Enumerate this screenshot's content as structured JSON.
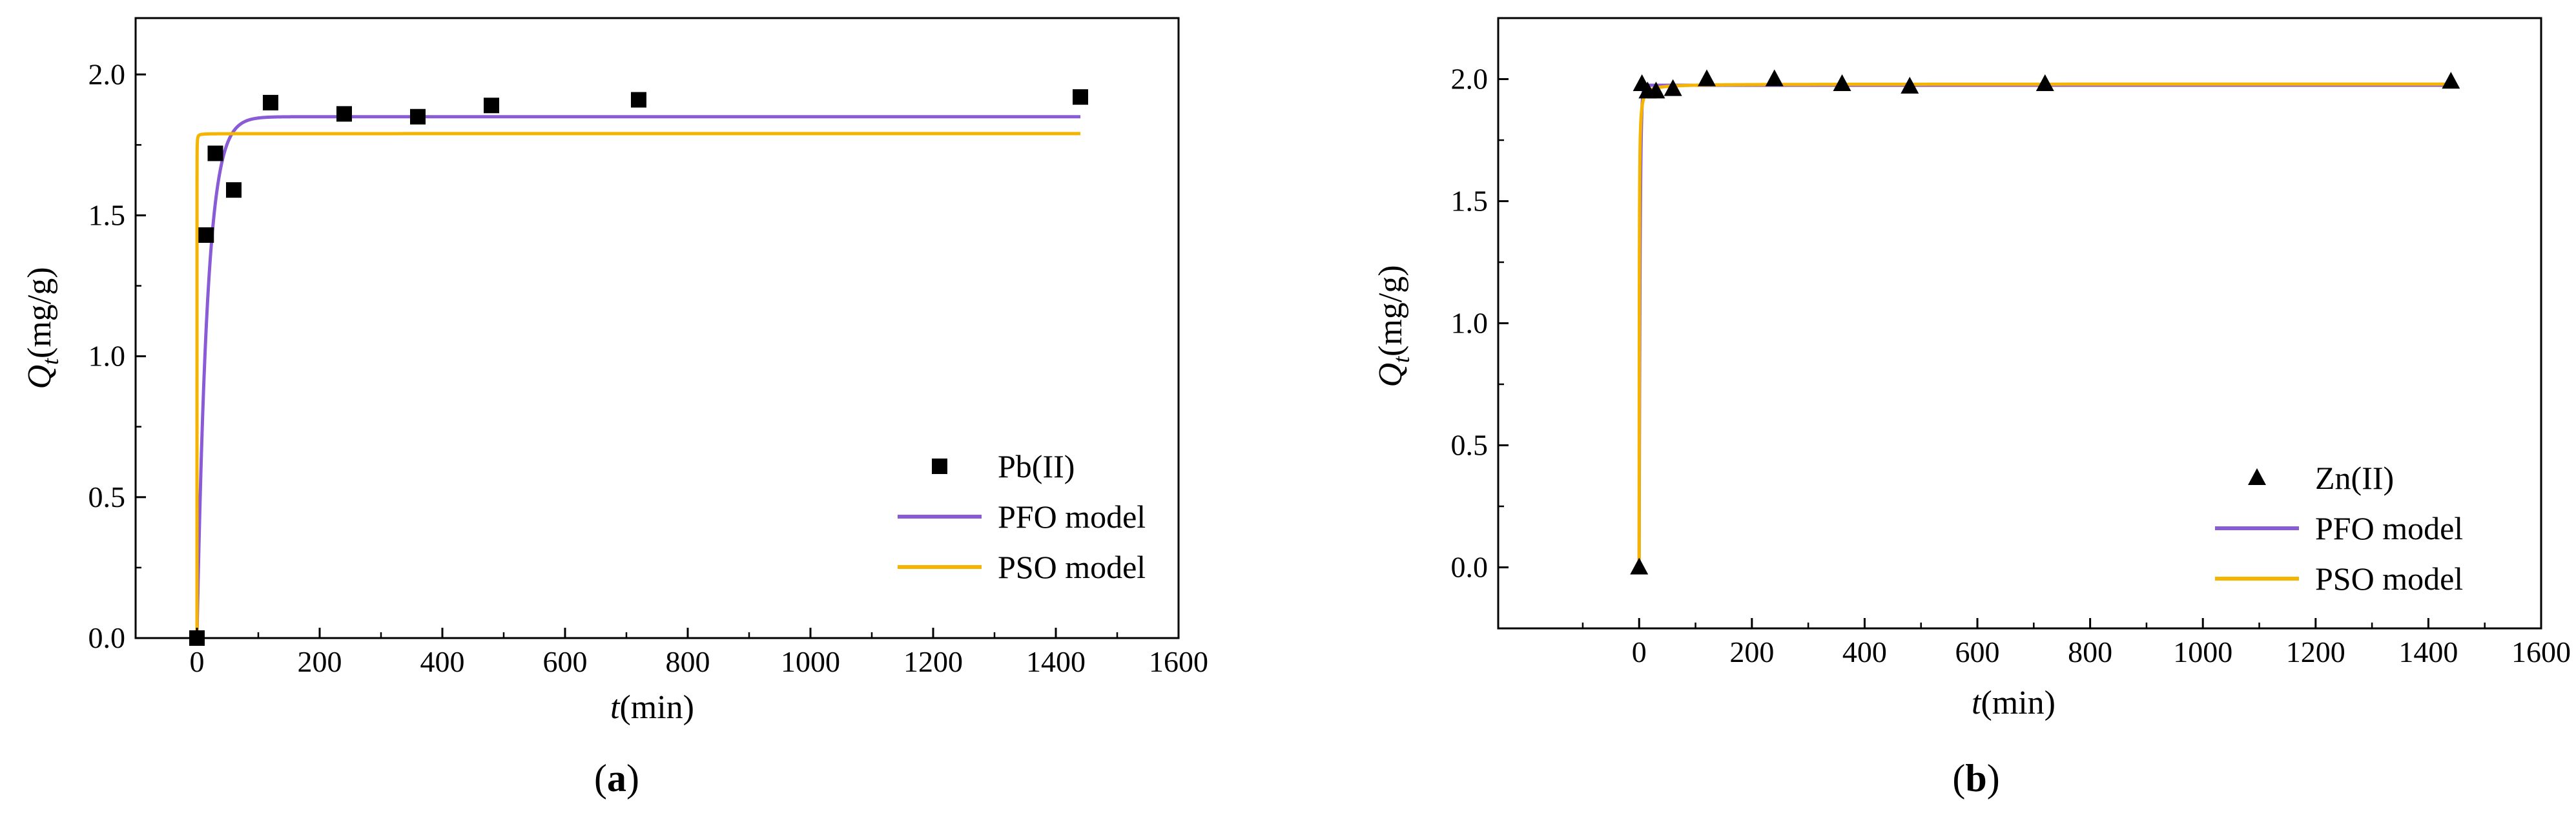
{
  "chart_data": [
    {
      "panel": "a",
      "type": "scatter",
      "panel_label": "(a)",
      "xlabel": {
        "symbol": "t",
        "unit": "(min)"
      },
      "ylabel": {
        "symbol": "Q",
        "sub": "t",
        "unit": "(mg/g)"
      },
      "xlim": [
        -100,
        1600
      ],
      "ylim": [
        0,
        2.2
      ],
      "xticks": [
        0,
        200,
        400,
        600,
        800,
        1000,
        1200,
        1400,
        1600
      ],
      "xtick_labels": [
        "0",
        "200",
        "400",
        "600",
        "800",
        "1000",
        "1200",
        "1400",
        "1600"
      ],
      "yticks": [
        0.0,
        0.5,
        1.0,
        1.5,
        2.0
      ],
      "ytick_labels": [
        "0.0",
        "0.5",
        "1.0",
        "1.5",
        "2.0"
      ],
      "legend_position": "bottom-right",
      "series": [
        {
          "name": "Pb(II)",
          "kind": "points",
          "marker": "square",
          "color": "#000000",
          "x": [
            0,
            15,
            30,
            60,
            120,
            240,
            360,
            480,
            720,
            1440
          ],
          "y": [
            0.0,
            1.43,
            1.72,
            1.59,
            1.9,
            1.86,
            1.85,
            1.89,
            1.91,
            1.92
          ]
        },
        {
          "name": "PFO model",
          "kind": "line",
          "model": "pfo",
          "color": "#8A5BD6",
          "qe": 1.85,
          "k": 0.06
        },
        {
          "name": "PSO model",
          "kind": "line",
          "model": "pso",
          "color": "#F5B400",
          "qe": 1.79,
          "k": 50
        }
      ]
    },
    {
      "panel": "b",
      "type": "scatter",
      "panel_label": "(b)",
      "xlabel": {
        "symbol": "t",
        "unit": "(min)"
      },
      "ylabel": {
        "symbol": "Q",
        "sub": "t",
        "unit": "(mg/g)"
      },
      "xlim": [
        -250,
        1600
      ],
      "ylim": [
        -0.25,
        2.25
      ],
      "xticks": [
        0,
        200,
        400,
        600,
        800,
        1000,
        1200,
        1400,
        1600
      ],
      "xtick_labels": [
        "0",
        "200",
        "400",
        "600",
        "800",
        "1000",
        "1200",
        "1400",
        "1600"
      ],
      "yticks": [
        0.0,
        0.5,
        1.0,
        1.5,
        2.0
      ],
      "ytick_labels": [
        "0.0",
        "0.5",
        "1.0",
        "1.5",
        "2.0"
      ],
      "legend_position": "bottom-right",
      "series": [
        {
          "name": "Zn(II)",
          "kind": "points",
          "marker": "triangle",
          "color": "#000000",
          "x": [
            0,
            5,
            15,
            30,
            60,
            120,
            240,
            360,
            480,
            720,
            1440
          ],
          "y": [
            0.0,
            1.98,
            1.95,
            1.95,
            1.96,
            2.0,
            2.0,
            1.98,
            1.97,
            1.98,
            1.99
          ]
        },
        {
          "name": "PFO model",
          "kind": "line",
          "model": "pfo",
          "color": "#8A5BD6",
          "qe": 1.975,
          "k": 0.6
        },
        {
          "name": "PSO model",
          "kind": "line",
          "model": "pso",
          "color": "#F5B400",
          "qe": 1.98,
          "k": 2
        }
      ]
    }
  ]
}
